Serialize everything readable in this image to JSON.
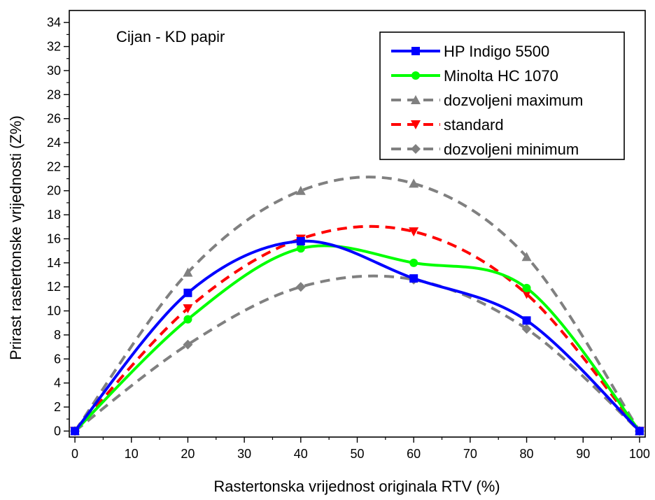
{
  "chart_data": {
    "type": "line",
    "annotation": "Cijan - KD papir",
    "xlabel": "Rastertonska vrijednost originala RTV (%)",
    "ylabel": "Prirast rastertonske vrijednosti (Z%)",
    "xlim": [
      -1,
      101
    ],
    "ylim": [
      -0.5,
      35
    ],
    "xticks": [
      0,
      10,
      20,
      30,
      40,
      50,
      60,
      70,
      80,
      90,
      100
    ],
    "yticks": [
      0,
      2,
      4,
      6,
      8,
      10,
      12,
      14,
      16,
      18,
      20,
      22,
      24,
      26,
      28,
      30,
      32,
      34
    ],
    "grid": false,
    "legend_position": "top-right",
    "series": [
      {
        "name": "HP Indigo 5500",
        "color": "#0000FF",
        "line_style": "solid",
        "marker": "square",
        "x": [
          0,
          20,
          40,
          60,
          80,
          100
        ],
        "values": [
          0,
          11.5,
          15.8,
          12.7,
          9.2,
          0
        ]
      },
      {
        "name": "Minolta HC 1070",
        "color": "#00FF00",
        "line_style": "solid",
        "marker": "circle",
        "x": [
          0,
          20,
          40,
          60,
          80,
          100
        ],
        "values": [
          0,
          9.3,
          15.2,
          14.0,
          11.9,
          0
        ]
      },
      {
        "name": "dozvoljeni maximum",
        "color": "#808080",
        "line_style": "dashed",
        "marker": "triangle-up",
        "x": [
          0,
          20,
          40,
          60,
          80,
          100
        ],
        "values": [
          0,
          13.2,
          20.0,
          20.6,
          14.5,
          0
        ]
      },
      {
        "name": "standard",
        "color": "#FF0000",
        "line_style": "dashed",
        "marker": "triangle-down",
        "x": [
          0,
          20,
          40,
          60,
          80,
          100
        ],
        "values": [
          0,
          10.2,
          16.0,
          16.6,
          11.4,
          0
        ]
      },
      {
        "name": "dozvoljeni minimum",
        "color": "#808080",
        "line_style": "dashed",
        "marker": "diamond",
        "x": [
          0,
          20,
          40,
          60,
          80,
          100
        ],
        "values": [
          0,
          7.2,
          12.0,
          12.6,
          8.5,
          0
        ]
      }
    ]
  }
}
